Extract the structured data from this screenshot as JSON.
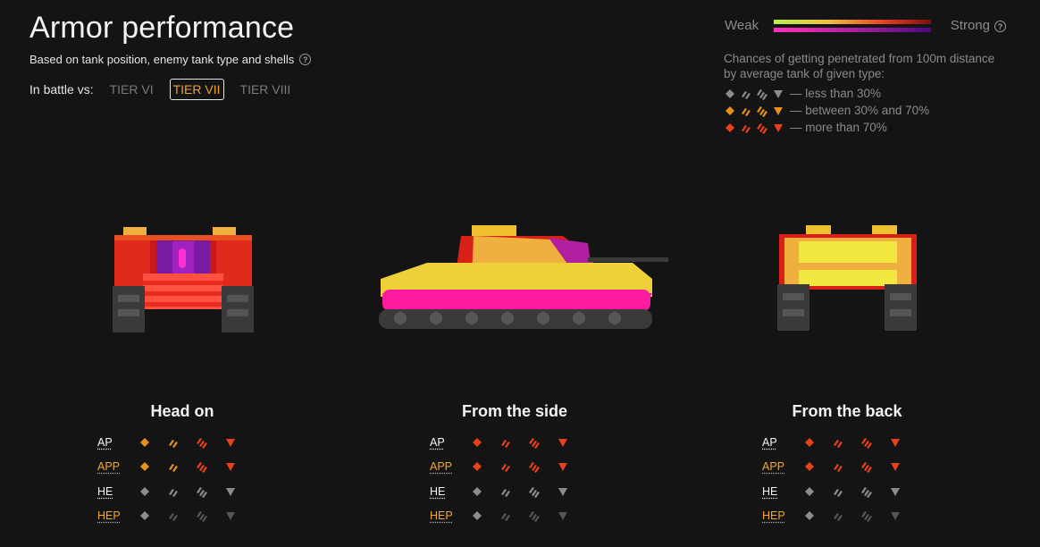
{
  "header": {
    "title": "Armor performance",
    "subtitle": "Based on tank position, enemy tank type and shells",
    "battle_label": "In battle vs:",
    "tiers": [
      "TIER VI",
      "TIER VII",
      "TIER VIII"
    ],
    "active_tier": "TIER VII"
  },
  "scale": {
    "weak_label": "Weak",
    "strong_label": "Strong"
  },
  "legend": {
    "description": "Chances of getting penetrated from 100m distance by average tank of given type:",
    "items": [
      {
        "level": "low",
        "text": "— less than 30%"
      },
      {
        "level": "mid",
        "text": "— between 30% and 70%"
      },
      {
        "level": "high",
        "text": "— more than 70%"
      }
    ]
  },
  "colors": {
    "low": "#8c8c8c",
    "low_dim": "#555555",
    "mid": "#e8901e",
    "high": "#e8401a"
  },
  "icon_names": [
    "ht-diamond-icon",
    "mt-slash-icon",
    "td-triple-slash-icon",
    "spg-triangle-icon"
  ],
  "views": [
    {
      "id": "head-on",
      "title": "Head on",
      "shells": [
        {
          "name": "AP",
          "style": "white",
          "levels": [
            "mid",
            "mid",
            "high",
            "high"
          ]
        },
        {
          "name": "APP",
          "style": "gold",
          "levels": [
            "mid",
            "mid",
            "high",
            "high"
          ]
        },
        {
          "name": "HE",
          "style": "white",
          "levels": [
            "low",
            "low",
            "low",
            "low"
          ]
        },
        {
          "name": "HEP",
          "style": "gold",
          "levels": [
            "low",
            "low_dim",
            "low_dim",
            "low_dim"
          ]
        }
      ]
    },
    {
      "id": "side",
      "title": "From the side",
      "shells": [
        {
          "name": "AP",
          "style": "white",
          "levels": [
            "high",
            "high",
            "high",
            "high"
          ]
        },
        {
          "name": "APP",
          "style": "gold",
          "levels": [
            "high",
            "high",
            "high",
            "high"
          ]
        },
        {
          "name": "HE",
          "style": "white",
          "levels": [
            "low",
            "low",
            "low",
            "low"
          ]
        },
        {
          "name": "HEP",
          "style": "gold",
          "levels": [
            "low",
            "low_dim",
            "low_dim",
            "low_dim"
          ]
        }
      ]
    },
    {
      "id": "back",
      "title": "From the back",
      "shells": [
        {
          "name": "AP",
          "style": "white",
          "levels": [
            "high",
            "high",
            "high",
            "high"
          ]
        },
        {
          "name": "APP",
          "style": "gold",
          "levels": [
            "high",
            "high",
            "high",
            "high"
          ]
        },
        {
          "name": "HE",
          "style": "white",
          "levels": [
            "low",
            "low",
            "low",
            "low"
          ]
        },
        {
          "name": "HEP",
          "style": "gold",
          "levels": [
            "low",
            "low_dim",
            "low_dim",
            "low_dim"
          ]
        }
      ]
    }
  ]
}
